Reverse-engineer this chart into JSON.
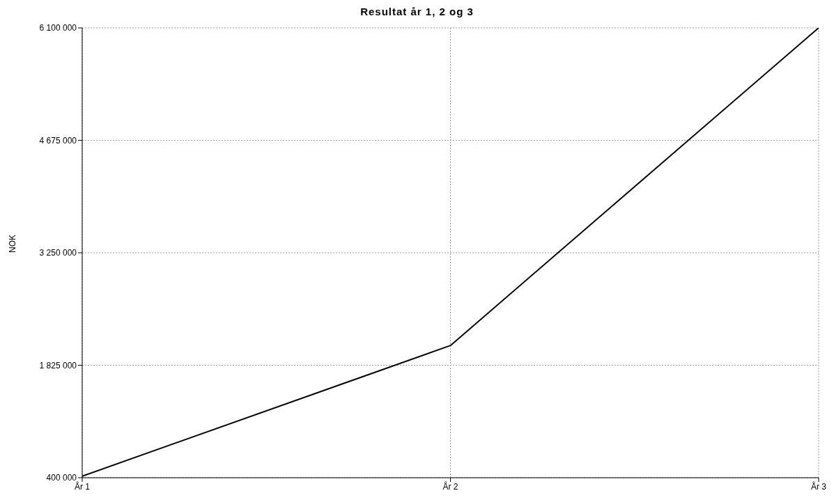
{
  "chart_data": {
    "type": "line",
    "title": "Resultat år 1, 2 og 3",
    "ylabel": "NOK",
    "categories": [
      "År 1",
      "År 2",
      "År 3"
    ],
    "series": [
      {
        "color": "#000000",
        "values": [
          420000,
          2075000,
          6100000
        ]
      }
    ],
    "ylim": [
      400000,
      6100000
    ],
    "yticks": [
      {
        "value": 400000,
        "label": "400 000"
      },
      {
        "value": 1825000,
        "label": "1 825 000"
      },
      {
        "value": 3250000,
        "label": "3 250 000"
      },
      {
        "value": 4675000,
        "label": "4 675 000"
      },
      {
        "value": 6100000,
        "label": "6 100 000"
      }
    ],
    "grid": true,
    "marker": "none",
    "line_style": "solid",
    "legend": false
  }
}
